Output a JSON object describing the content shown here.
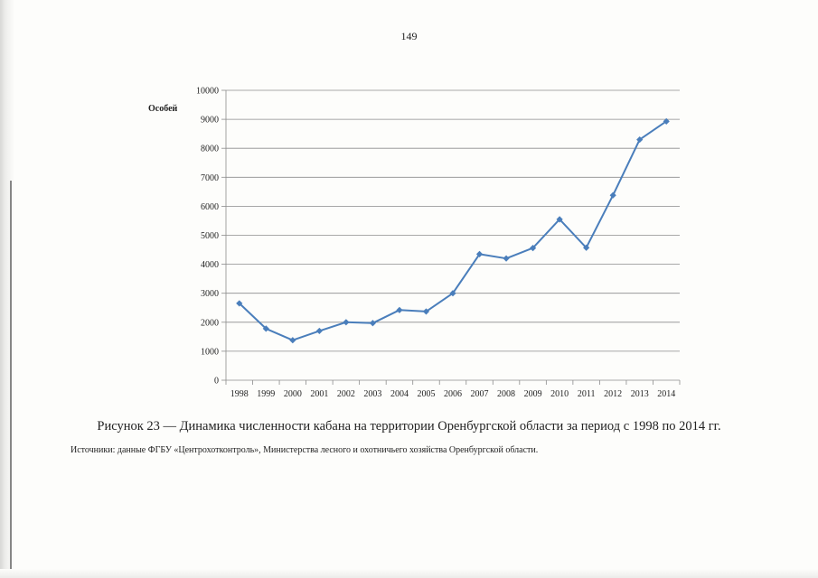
{
  "page": {
    "number": "149",
    "caption": "Рисунок 23 — Динамика численности кабана на территории Оренбургской области за период с 1998 по 2014 гг.",
    "source": "Источники: данные ФГБУ «Центрохотконтроль», Министерства лесного и охотничьего хозяйства Оренбургской области."
  },
  "chart_data": {
    "type": "line",
    "title": "",
    "xlabel": "",
    "ylabel": "Особей",
    "categories": [
      "1998",
      "1999",
      "2000",
      "2001",
      "2002",
      "2003",
      "2004",
      "2005",
      "2006",
      "2007",
      "2008",
      "2009",
      "2010",
      "2011",
      "2012",
      "2013",
      "2014"
    ],
    "series": [
      {
        "values": [
          2650,
          1780,
          1380,
          1700,
          2000,
          1970,
          2420,
          2370,
          3000,
          4350,
          4200,
          4560,
          5550,
          4570,
          6380,
          8300,
          8930
        ]
      }
    ],
    "ylim": [
      0,
      10000
    ],
    "yticks": [
      0,
      1000,
      2000,
      3000,
      4000,
      5000,
      6000,
      7000,
      8000,
      9000,
      10000
    ],
    "grid": true,
    "legend": "none",
    "colors": {
      "line": "#4a7ebb",
      "grid": "#8c8c8c",
      "axis": "#8c8c8c"
    }
  }
}
